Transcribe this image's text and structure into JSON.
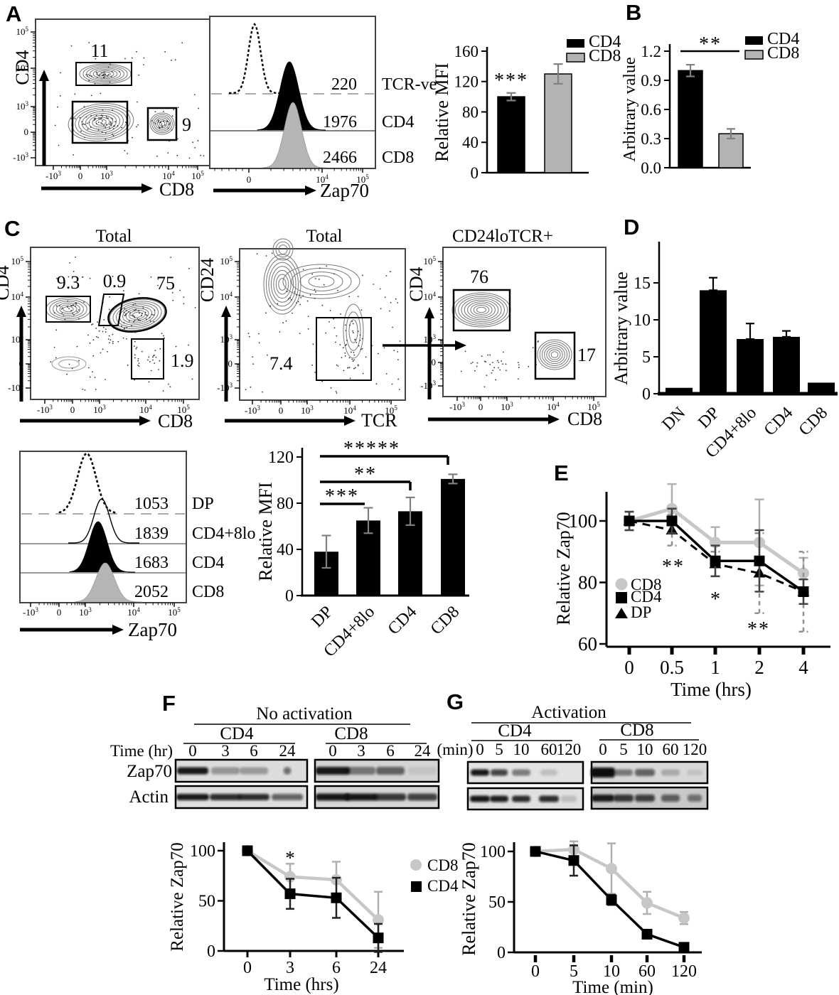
{
  "panels": {
    "a": "A",
    "b": "B",
    "c": "C",
    "d": "D",
    "e": "E",
    "f": "F",
    "g": "G"
  },
  "chart_data": [
    {
      "id": "a_flow",
      "panel": "A",
      "type": "scatter",
      "subtype": "flow-contour",
      "title": "",
      "xlabel": "CD8",
      "ylabel": "CD4",
      "xticks": [
        "-10^3",
        "0",
        "10^3",
        "10^4",
        "10^5"
      ],
      "yticks": [
        "10^5",
        "10^4",
        "10^3",
        "0",
        "-10^3"
      ],
      "gates": [
        {
          "label": "11"
        },
        {
          "label": "9"
        }
      ]
    },
    {
      "id": "a_hist",
      "panel": "A",
      "type": "histogram",
      "xlabel": "Zap70",
      "xticks": [
        "0",
        "10^4",
        "10^5"
      ],
      "rows": [
        {
          "name": "TCR-ve",
          "mfi": "220",
          "style": "dotted-open"
        },
        {
          "name": "CD4",
          "mfi": "1976",
          "style": "filled-black"
        },
        {
          "name": "CD8",
          "mfi": "2466",
          "style": "filled-gray"
        }
      ]
    },
    {
      "id": "a_bar",
      "panel": "A",
      "type": "bar",
      "ylabel": "Relative MFI",
      "yticks": [
        "0",
        "40",
        "80",
        "120",
        "160"
      ],
      "ylim": [
        0,
        160
      ],
      "categories": [
        "CD4",
        "CD8"
      ],
      "values": [
        100,
        130
      ],
      "errors": [
        5,
        13
      ],
      "bar_colors": [
        "#000000",
        "#b3b3b3"
      ],
      "annotations": [
        {
          "text": "***",
          "over": "CD4"
        }
      ],
      "legend": [
        "CD4",
        "CD8"
      ]
    },
    {
      "id": "b_bar",
      "panel": "B",
      "type": "bar",
      "ylabel": "Arbitrary value",
      "yticks": [
        "0.0",
        "0.3",
        "0.6",
        "0.9",
        "1.2"
      ],
      "ylim": [
        0,
        1.2
      ],
      "categories": [
        "CD4",
        "CD8"
      ],
      "values": [
        1.0,
        0.35
      ],
      "errors": [
        0.06,
        0.05
      ],
      "bar_colors": [
        "#000000",
        "#b3b3b3"
      ],
      "annotations": [
        {
          "text": "**",
          "between": [
            "CD4",
            "CD8"
          ]
        }
      ],
      "legend": [
        "CD4",
        "CD8"
      ]
    },
    {
      "id": "c_flow1",
      "panel": "C",
      "type": "scatter",
      "subtype": "flow-contour",
      "title": "Total",
      "xlabel": "CD8",
      "ylabel": "CD4",
      "xticks": [
        "-10^3",
        "0",
        "10^3",
        "10^4",
        "10^5"
      ],
      "yticks": [
        "10^5",
        "10^4",
        "10^3",
        "0",
        "-10^3"
      ],
      "gates": [
        {
          "label": "9.3"
        },
        {
          "label": "0.9"
        },
        {
          "label": "75"
        },
        {
          "label": "1.9"
        }
      ]
    },
    {
      "id": "c_flow2",
      "panel": "C",
      "type": "scatter",
      "subtype": "flow-contour",
      "title": "Total",
      "xlabel": "TCR",
      "ylabel": "CD24",
      "xticks": [
        "-10^3",
        "0",
        "10^3",
        "10^4",
        "10^5"
      ],
      "yticks": [
        "10^5",
        "10^4",
        "10^3",
        "0",
        "-10^3"
      ],
      "gates": [
        {
          "label": "7.4"
        }
      ]
    },
    {
      "id": "c_flow3",
      "panel": "C",
      "type": "scatter",
      "subtype": "flow-contour",
      "title": "CD24loTCR+",
      "xlabel": "CD8",
      "ylabel": "CD4",
      "xticks": [
        "-10^3",
        "0",
        "10^3",
        "10^4",
        "10^5"
      ],
      "yticks": [
        "10^5",
        "10^4",
        "10^3",
        "0",
        "-10^3"
      ],
      "gates": [
        {
          "label": "76"
        },
        {
          "label": "17"
        }
      ]
    },
    {
      "id": "c_hist",
      "panel": "C",
      "type": "histogram",
      "xlabel": "Zap70",
      "xticks": [
        "-10^3",
        "0",
        "10^3",
        "10^4",
        "10^5"
      ],
      "rows": [
        {
          "name": "DP",
          "mfi": "1053",
          "style": "dotted-open"
        },
        {
          "name": "CD4+8lo",
          "mfi": "1839",
          "style": "line-open"
        },
        {
          "name": "CD4",
          "mfi": "1683",
          "style": "filled-black"
        },
        {
          "name": "CD8",
          "mfi": "2052",
          "style": "filled-gray"
        }
      ]
    },
    {
      "id": "c_bar",
      "panel": "C",
      "type": "bar",
      "ylabel": "Relative MFI",
      "yticks": [
        "0",
        "40",
        "80",
        "120"
      ],
      "ylim": [
        0,
        120
      ],
      "categories": [
        "DP",
        "CD4+8lo",
        "CD4",
        "CD8"
      ],
      "values": [
        38,
        65,
        73,
        101
      ],
      "errors": [
        14,
        11,
        12,
        4
      ],
      "annotations": [
        {
          "text": "***",
          "between": [
            "DP",
            "CD4+8lo"
          ]
        },
        {
          "text": "**",
          "between": [
            "DP",
            "CD4"
          ]
        },
        {
          "text": "*****",
          "between": [
            "DP",
            "CD8"
          ]
        }
      ]
    },
    {
      "id": "d_bar",
      "panel": "D",
      "type": "bar",
      "ylabel": "Arbitrary value",
      "yticks": [
        "0",
        "5",
        "10",
        "15"
      ],
      "ylim": [
        0,
        20
      ],
      "categories": [
        "DN",
        "DP",
        "CD4+8lo",
        "CD4",
        "CD8"
      ],
      "values": [
        0.8,
        14,
        7.4,
        7.7,
        1.5
      ],
      "errors": [
        0,
        1.7,
        2.1,
        0.8,
        0
      ]
    },
    {
      "id": "e_line",
      "panel": "E",
      "type": "line",
      "ylabel": "Relative Zap70",
      "xlabel": "Time (hrs)",
      "yticks": [
        "60",
        "80",
        "100"
      ],
      "ylim": [
        58,
        112
      ],
      "x": [
        "0",
        "0.5",
        "1",
        "2",
        "4"
      ],
      "series": [
        {
          "name": "CD8",
          "marker": "circle",
          "color": "#c7c7c7",
          "values": [
            100,
            104,
            93,
            93,
            83
          ],
          "errors": [
            3,
            8,
            5,
            14,
            5
          ]
        },
        {
          "name": "CD4",
          "marker": "square",
          "color": "#000000",
          "values": [
            100,
            100,
            87,
            87,
            77
          ],
          "errors": [
            3,
            4,
            5,
            10,
            4
          ]
        },
        {
          "name": "DP",
          "marker": "triangle",
          "color": "#000000",
          "dashed": true,
          "values": [
            100,
            97,
            86,
            83,
            77
          ],
          "errors": [
            3,
            5,
            4,
            13,
            13
          ]
        }
      ],
      "stars": [
        {
          "x": "0.5",
          "text": "**"
        },
        {
          "x": "1",
          "text": "*"
        },
        {
          "x": "2",
          "text": "**"
        }
      ],
      "legend": [
        "CD8",
        "CD4",
        "DP"
      ]
    },
    {
      "id": "f_line",
      "panel": "F",
      "type": "line",
      "ylabel": "Relative Zap70",
      "xlabel": "Time (hrs)",
      "yticks": [
        "0",
        "50",
        "100"
      ],
      "ylim": [
        0,
        115
      ],
      "x": [
        "0",
        "3",
        "6",
        "24"
      ],
      "series": [
        {
          "name": "CD8",
          "marker": "circle",
          "color": "#c7c7c7",
          "values": [
            100,
            74,
            71,
            31
          ],
          "errors": [
            0,
            13,
            18,
            28
          ]
        },
        {
          "name": "CD4",
          "marker": "square",
          "color": "#000000",
          "values": [
            100,
            57,
            53,
            13
          ],
          "errors": [
            0,
            15,
            20,
            14
          ]
        }
      ],
      "stars": [
        {
          "x": "3",
          "text": "*"
        }
      ],
      "legend": [
        "CD8",
        "CD4"
      ]
    },
    {
      "id": "g_line",
      "panel": "G",
      "type": "line",
      "ylabel": "Relative Zap70",
      "xlabel": "Time (min)",
      "yticks": [
        "0",
        "50",
        "100"
      ],
      "ylim": [
        0,
        115
      ],
      "x": [
        "0",
        "5",
        "10",
        "60",
        "120"
      ],
      "series": [
        {
          "name": "CD8",
          "marker": "circle",
          "color": "#c7c7c7",
          "values": [
            100,
            102,
            83,
            49,
            34
          ],
          "errors": [
            3,
            8,
            25,
            11,
            6
          ]
        },
        {
          "name": "CD4",
          "marker": "square",
          "color": "#000000",
          "values": [
            100,
            91,
            52,
            18,
            5
          ],
          "errors": [
            0,
            15,
            5,
            0,
            0
          ]
        }
      ]
    }
  ],
  "blots": {
    "f": {
      "condition": "No activation",
      "time_label": "Time (hr)",
      "row_labels": [
        "Zap70",
        "Actin"
      ],
      "groups": [
        {
          "name": "CD4",
          "lanes": [
            "0",
            "3",
            "6",
            "24"
          ],
          "zap70_intensity": [
            0.95,
            0.32,
            0.3,
            0.55
          ],
          "actin_intensity": [
            0.95,
            0.85,
            0.85,
            0.6
          ]
        },
        {
          "name": "CD8",
          "lanes": [
            "0",
            "3",
            "6",
            "24"
          ],
          "zap70_intensity": [
            0.95,
            0.45,
            0.6,
            0.08
          ],
          "actin_intensity": [
            0.95,
            0.95,
            0.8,
            0.75
          ]
        }
      ]
    },
    "g": {
      "condition": "Activation",
      "time_label": "(min)",
      "groups": [
        {
          "name": "CD4",
          "lanes": [
            "0",
            "5",
            "10",
            "60",
            "120"
          ],
          "zap70_intensity": [
            0.95,
            0.75,
            0.45,
            0.15,
            0.02
          ],
          "actin_intensity": [
            0.95,
            0.9,
            0.85,
            0.85,
            0.15
          ]
        },
        {
          "name": "CD8",
          "lanes": [
            "0",
            "5",
            "10",
            "60",
            "120"
          ],
          "zap70_intensity": [
            1,
            0.45,
            0.6,
            0.22,
            0.1
          ],
          "actin_intensity": [
            0.95,
            0.8,
            0.75,
            0.6,
            0.5
          ]
        }
      ]
    }
  }
}
